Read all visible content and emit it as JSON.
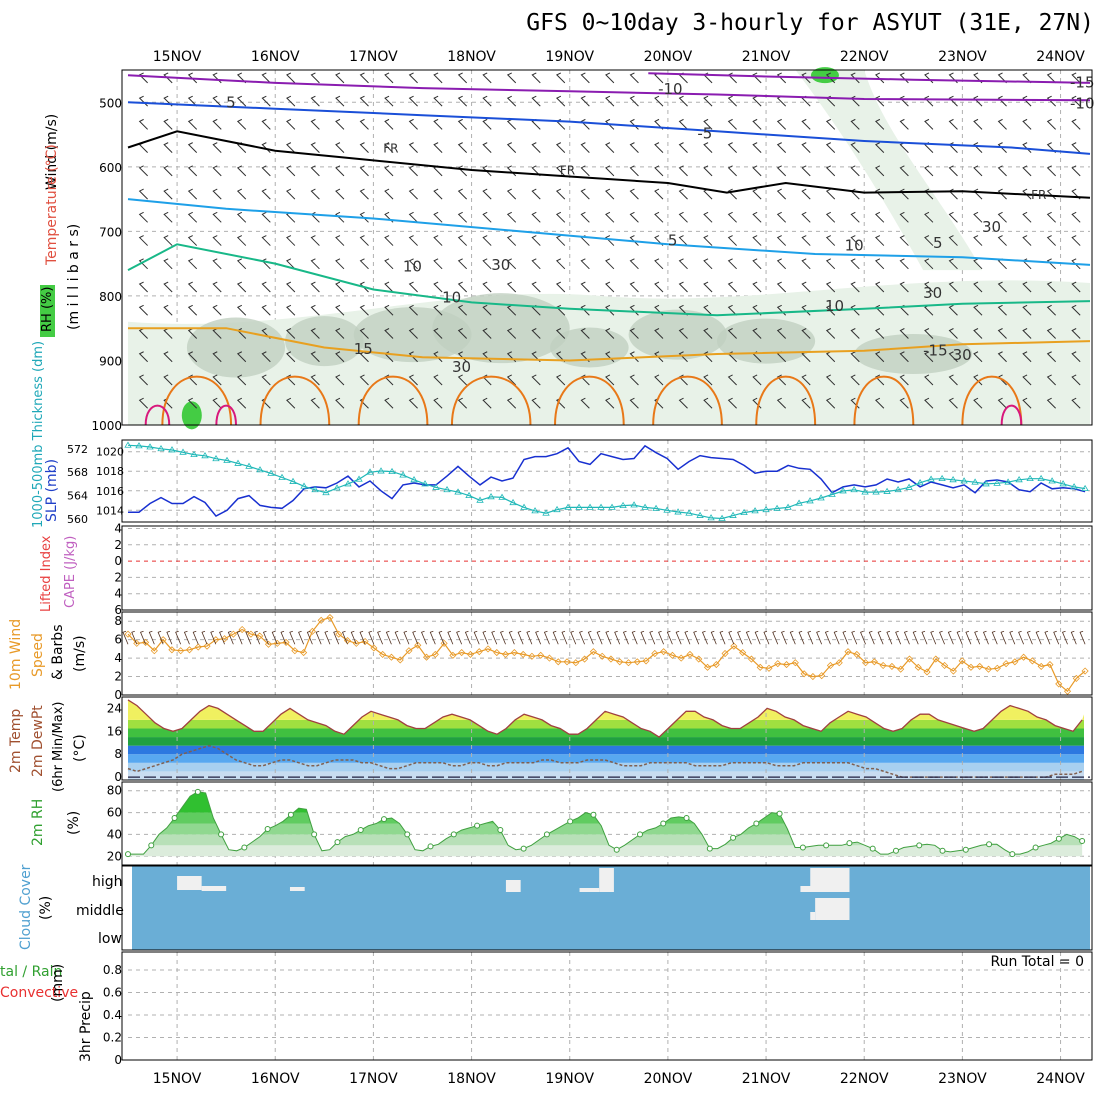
{
  "header": {
    "title": "GFS 0~10day 3-hourly for ASYUT (31E, 27N)"
  },
  "colors": {
    "frame": "#000000",
    "grid": "#b0b0b0",
    "temp_neg": "#8a1cb0",
    "temp_mid": "#1a4fd8",
    "temp_pos5": "#1ea0e8",
    "temp_10": "#18b888",
    "temp_15": "#e8a020",
    "temp_20": "#e87818",
    "temp_25": "#d8187c",
    "freezing": "#000000",
    "rh_light": "#e8f2e8",
    "rh_mid": "#c0d0c0",
    "rh_high": "#a8b8a8",
    "rh_sat": "#44cc44",
    "slp": "#1830d0",
    "thickness": "#20b8b8",
    "lifted_zero": "#e83030",
    "wind10m": "#e89a28",
    "cloud_bg": "#6aaed6",
    "cloud_clear": "#f0f0f0"
  },
  "axes": {
    "x_dates_top": [
      "15NOV",
      "16NOV",
      "17NOV",
      "18NOV",
      "19NOV",
      "20NOV",
      "21NOV",
      "22NOV",
      "23NOV",
      "24NOV"
    ],
    "x_dates_bottom": [
      "15NOV",
      "16NOV",
      "17NOV",
      "18NOV",
      "19NOV",
      "20NOV",
      "21NOV",
      "22NOV",
      "23NOV",
      "24NOV"
    ]
  },
  "panel_labels": {
    "upper_wind": "Wind (m/s)",
    "upper_temp": "Temperature (°C)",
    "upper_rh": "RH (%)",
    "upper_levels": "(m i l l i b a r s)",
    "slp": "SLP (mb)",
    "thickness": "1000-500mb Thickness (dm)",
    "cape": "CAPE (J/kg)",
    "lifted": "Lifted Index",
    "wind10_a": "10m Wind",
    "wind10_b": "Speed",
    "wind10_c": "& Barbs",
    "wind10_units": "(m/s)",
    "temp_a": "2m Temp",
    "temp_b": "2m DewPt",
    "temp_c": "(6hr Min/Max)",
    "temp_units": "(°C)",
    "rh2m": "2m RH",
    "rh2m_units": "(%)",
    "cloud": "Cloud Cover",
    "cloud_units": "(%)",
    "cloud_high": "high",
    "cloud_middle": "middle",
    "cloud_low": "low",
    "precip_a": "tal / Rain",
    "precip_b": "Convective",
    "precip_c": "3hr Precip",
    "precip_units": "(mm)",
    "run_total": "Run Total = 0"
  },
  "chart_data": [
    {
      "type": "line",
      "name": "upper-air",
      "y_ticks": [
        500,
        600,
        700,
        800,
        900,
        1000
      ],
      "ylim": [
        1000,
        450
      ],
      "contour_labels": [
        {
          "x": 4.05,
          "p": 477,
          "text": "-15"
        },
        {
          "x": 1.95,
          "p": 487,
          "text": "-10"
        },
        {
          "x": 4.05,
          "p": 510,
          "text": "-10"
        },
        {
          "x": -0.25,
          "p": 508,
          "text": "5"
        },
        {
          "x": 2.15,
          "p": 556,
          "text": "-5"
        },
        {
          "x": 0.55,
          "p": 578,
          "text": "FR"
        },
        {
          "x": 1.45,
          "p": 612,
          "text": "FR"
        },
        {
          "x": 3.85,
          "p": 650,
          "text": "FR"
        },
        {
          "x": 2.0,
          "p": 722,
          "text": "5"
        },
        {
          "x": 3.35,
          "p": 726,
          "text": "5"
        },
        {
          "x": 0.85,
          "p": 810,
          "text": "10"
        },
        {
          "x": 2.8,
          "p": 823,
          "text": "10"
        },
        {
          "x": 0.4,
          "p": 890,
          "text": "15"
        },
        {
          "x": 3.3,
          "p": 892,
          "text": "-15"
        },
        {
          "x": 0.65,
          "p": 762,
          "text": "10"
        },
        {
          "x": 1.1,
          "p": 760,
          "text": "30"
        },
        {
          "x": 2.9,
          "p": 730,
          "text": "10"
        },
        {
          "x": 3.6,
          "p": 701,
          "text": "30"
        },
        {
          "x": 3.3,
          "p": 803,
          "text": "30"
        },
        {
          "x": 3.45,
          "p": 899,
          "text": "30"
        },
        {
          "x": 0.9,
          "p": 918,
          "text": "30"
        }
      ]
    },
    {
      "type": "line",
      "name": "slp-thickness",
      "y_left_ticks": [
        560,
        564,
        568,
        572
      ],
      "y_right_ticks": [
        1014,
        1016,
        1018,
        1020
      ],
      "slp_ylim": [
        1012.8,
        1021.2
      ],
      "slp_mb": [
        1013.8,
        1013.8,
        1014.7,
        1015.3,
        1014.7,
        1014.7,
        1015.4,
        1014.8,
        1013.4,
        1014.0,
        1015.2,
        1015.5,
        1014.5,
        1014.3,
        1014.2,
        1015.0,
        1016.2,
        1016.4,
        1016.3,
        1016.8,
        1017.5,
        1016.4,
        1017.0,
        1016.0,
        1015.2,
        1016.6,
        1016.8,
        1016.6,
        1016.6,
        1017.5,
        1018.5,
        1017.5,
        1016.6,
        1017.4,
        1017.0,
        1017.3,
        1019.2,
        1019.5,
        1019.5,
        1019.8,
        1020.4,
        1019.0,
        1018.7,
        1019.8,
        1019.5,
        1019.2,
        1019.3,
        1020.6,
        1019.9,
        1019.3,
        1018.2,
        1019.0,
        1019.6,
        1019.4,
        1019.3,
        1019.2,
        1018.6,
        1017.8,
        1018.0,
        1018.0,
        1018.6,
        1018.3,
        1018.2,
        1017.2,
        1015.8,
        1016.4,
        1016.6,
        1016.4,
        1016.6,
        1017.2,
        1016.9,
        1017.2,
        1016.4,
        1016.9,
        1016.6,
        1016.3,
        1016.6,
        1015.8,
        1017.0,
        1017.1,
        1016.9,
        1016.1,
        1015.9,
        1016.8,
        1016.2,
        1016.3,
        1016.2,
        1015.9
      ],
      "thickness_dm": [
        572.6,
        572.5,
        572.3,
        572.0,
        571.8,
        571.4,
        571.0,
        570.8,
        570.3,
        570.0,
        569.5,
        569.0,
        568.4,
        567.8,
        567.1,
        566.4,
        565.6,
        565.0,
        564.5,
        565.3,
        566.0,
        566.8,
        568.0,
        568.2,
        568.1,
        567.5,
        566.7,
        566.0,
        565.4,
        565.0,
        564.6,
        564.0,
        563.2,
        563.8,
        563.7,
        562.8,
        562.0,
        561.4,
        561.0,
        561.6,
        562.0,
        562.0,
        562.0,
        562.0,
        562.0,
        562.3,
        562.4,
        562.0,
        561.8,
        561.5,
        561.2,
        561.0,
        560.6,
        560.2,
        560.1,
        560.6,
        561.1,
        561.4,
        561.6,
        561.8,
        562.0,
        562.7,
        563.1,
        563.6,
        564.2,
        564.8,
        565.0,
        564.6,
        564.6,
        564.7,
        565.0,
        565.4,
        566.2,
        566.8,
        566.9,
        566.7,
        566.5,
        566.3,
        566.0,
        566.1,
        566.3,
        566.7,
        566.9,
        566.9,
        566.5,
        566.0,
        565.5,
        565.2
      ]
    },
    {
      "type": "line",
      "name": "cape-lifted",
      "y_ticks": [
        -4,
        -2,
        0,
        2,
        4,
        6
      ],
      "y_tick_labels": [
        "4",
        "2",
        "0",
        "2",
        "4",
        "6"
      ],
      "ylim": [
        -4,
        6
      ],
      "lifted_index_zero": 0
    },
    {
      "type": "line",
      "name": "wind10m",
      "y_ticks": [
        0,
        2,
        4,
        6,
        8
      ],
      "ylim": [
        0,
        9
      ],
      "speed_ms": [
        6.6,
        5.6,
        5.7,
        4.8,
        6.0,
        4.9,
        4.8,
        4.9,
        5.2,
        5.3,
        6.0,
        6.1,
        6.6,
        7.1,
        6.6,
        6.4,
        5.5,
        5.6,
        5.7,
        4.8,
        4.6,
        6.9,
        8.1,
        8.4,
        6.6,
        5.9,
        5.6,
        5.8,
        5.1,
        4.4,
        4.1,
        3.8,
        4.8,
        5.4,
        4.1,
        4.4,
        5.6,
        4.3,
        4.6,
        4.4,
        4.7,
        5.0,
        4.6,
        4.4,
        4.6,
        4.4,
        4.2,
        4.3,
        4.0,
        3.6,
        3.6,
        3.5,
        3.9,
        4.7,
        4.2,
        3.9,
        3.6,
        3.5,
        3.6,
        3.7,
        4.5,
        4.7,
        4.3,
        4.0,
        4.4,
        3.9,
        3.0,
        3.3,
        4.5,
        5.3,
        4.6,
        3.9,
        3.0,
        2.9,
        3.4,
        3.3,
        3.5,
        2.3,
        2.0,
        2.1,
        3.2,
        3.5,
        4.7,
        4.4,
        3.5,
        3.6,
        3.2,
        3.1,
        2.8,
        3.9,
        3.0,
        2.5,
        3.9,
        3.2,
        2.6,
        3.7,
        3.0,
        3.1,
        2.8,
        2.9,
        3.4,
        3.6,
        4.1,
        3.7,
        3.1,
        3.3,
        1.2,
        0.4,
        1.8,
        2.6
      ]
    },
    {
      "type": "area",
      "name": "temp2m",
      "y_ticks": [
        0,
        8,
        16,
        24
      ],
      "ylim": [
        -1,
        28
      ],
      "temp_c": [
        27,
        25,
        22,
        19,
        17,
        16,
        17,
        20,
        23,
        25,
        24,
        22,
        20,
        18,
        16,
        16,
        19,
        22,
        24,
        22,
        20,
        19,
        18,
        16,
        15,
        18,
        21,
        23,
        22,
        21,
        20,
        18,
        17,
        17,
        19,
        21,
        22,
        21,
        20,
        18,
        16,
        15,
        17,
        20,
        22,
        21,
        20,
        18,
        17,
        15,
        15,
        17,
        20,
        23,
        22,
        21,
        19,
        17,
        16,
        14,
        17,
        20,
        23,
        23,
        21,
        20,
        18,
        17,
        17,
        19,
        21,
        24,
        23,
        21,
        20,
        18,
        17,
        16,
        19,
        21,
        23,
        22,
        21,
        19,
        17,
        16,
        17,
        20,
        22,
        22,
        20,
        19,
        18,
        17,
        16,
        17,
        20,
        23,
        25,
        24,
        23,
        21,
        20,
        18,
        17,
        16,
        20
      ],
      "dewpt_c": [
        3,
        2,
        3,
        4,
        5,
        6,
        8,
        9,
        10,
        11,
        10,
        8,
        6,
        5,
        4,
        4,
        5,
        6,
        6,
        5,
        4,
        4,
        5,
        6,
        6,
        6,
        5,
        5,
        4,
        3,
        3,
        4,
        5,
        5,
        5,
        5,
        4,
        4,
        5,
        5,
        4,
        4,
        5,
        5,
        5,
        5,
        6,
        6,
        5,
        5,
        5,
        6,
        6,
        6,
        5,
        4,
        4,
        4,
        5,
        5,
        5,
        5,
        5,
        4,
        4,
        4,
        4,
        5,
        5,
        5,
        5,
        5,
        4,
        4,
        4,
        5,
        5,
        5,
        5,
        5,
        5,
        4,
        3,
        3,
        2,
        1,
        0,
        0,
        0,
        0,
        0,
        0,
        0,
        0,
        0,
        0,
        0,
        0,
        0,
        0,
        0,
        0,
        0,
        1,
        1,
        1,
        2
      ]
    },
    {
      "type": "area",
      "name": "rh2m",
      "y_ticks": [
        20,
        40,
        60,
        80
      ],
      "ylim": [
        12,
        88
      ],
      "rh_pct": [
        22,
        22,
        22,
        30,
        40,
        46,
        55,
        65,
        75,
        79,
        78,
        55,
        40,
        26,
        25,
        28,
        33,
        38,
        45,
        48,
        52,
        58,
        64,
        63,
        40,
        25,
        26,
        33,
        38,
        40,
        44,
        48,
        50,
        54,
        55,
        50,
        40,
        26,
        25,
        29,
        31,
        36,
        40,
        44,
        46,
        48,
        50,
        52,
        44,
        30,
        26,
        27,
        30,
        35,
        40,
        44,
        48,
        52,
        55,
        60,
        58,
        48,
        30,
        26,
        30,
        35,
        40,
        44,
        46,
        50,
        55,
        56,
        55,
        50,
        40,
        27,
        27,
        31,
        37,
        40,
        46,
        50,
        55,
        60,
        59,
        45,
        28,
        28,
        29,
        30,
        30,
        30,
        30,
        32,
        33,
        30,
        27,
        22,
        22,
        25,
        28,
        29,
        30,
        31,
        30,
        25,
        24,
        25,
        26,
        28,
        30,
        31,
        31,
        26,
        22,
        22,
        24,
        28,
        30,
        32,
        36,
        40,
        38,
        34
      ],
      "y_tick_labels": [
        "20",
        "40",
        "60",
        "80"
      ]
    },
    {
      "type": "heatmap",
      "name": "cloud-cover",
      "rows": [
        "high",
        "middle",
        "low"
      ]
    },
    {
      "type": "bar",
      "name": "precip",
      "y_ticks": [
        0,
        0.2,
        0.4,
        0.6,
        0.8
      ],
      "y_tick_labels": [
        "0",
        "0.2",
        "0.4",
        "0.6",
        "0.8"
      ],
      "ylim": [
        0,
        0.96
      ],
      "values": []
    }
  ]
}
